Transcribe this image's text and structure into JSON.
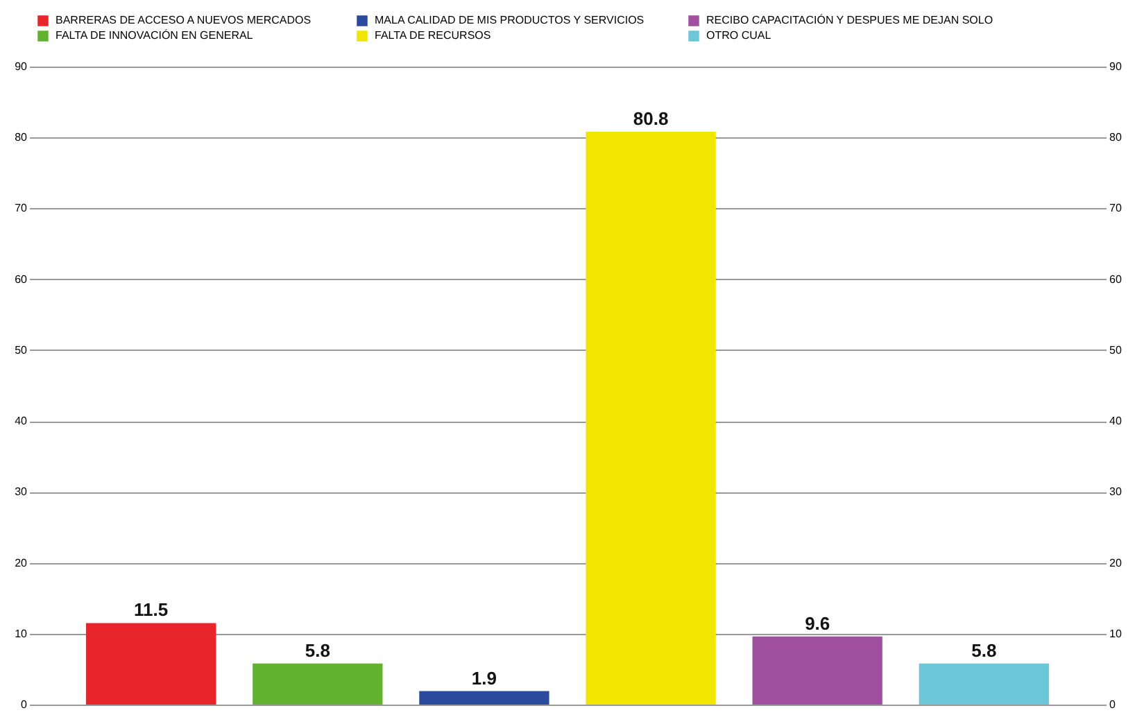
{
  "chart_data": {
    "type": "bar",
    "categories": [
      null,
      null,
      null,
      null,
      null,
      null
    ],
    "series": [
      {
        "name": "BARRERAS DE ACCESO A NUEVOS MERCADOS",
        "color": "#e8252a",
        "values": [
          11.5,
          null,
          null,
          null,
          null,
          null
        ]
      },
      {
        "name": "MALA CALIDAD DE MIS PRODUCTOS Y SERVICIOS",
        "color": "#2a4a9e",
        "values": [
          null,
          null,
          1.9,
          null,
          null,
          null
        ]
      },
      {
        "name": "RECIBO CAPACITACIÓN Y DESPUES ME DEJAN SOLO",
        "color": "#a0509e",
        "values": [
          null,
          null,
          null,
          null,
          9.6,
          null
        ]
      },
      {
        "name": "FALTA DE INNOVACIÓN EN GENERAL",
        "color": "#62b22f",
        "values": [
          null,
          5.8,
          null,
          null,
          null,
          null
        ]
      },
      {
        "name": "FALTA DE RECURSOS",
        "color": "#f2e600",
        "values": [
          null,
          null,
          null,
          80.8,
          null,
          null
        ]
      },
      {
        "name": "OTRO CUAL",
        "color": "#6cc8d8",
        "values": [
          null,
          null,
          null,
          null,
          null,
          5.8
        ]
      }
    ],
    "ylim": [
      0,
      90
    ],
    "yticks": [
      0,
      10,
      20,
      30,
      40,
      50,
      60,
      70,
      80,
      90
    ],
    "y2lim": [
      0,
      90
    ],
    "y2ticks": [
      0,
      10,
      20,
      30,
      40,
      50,
      60,
      70,
      80,
      90
    ],
    "grid": "y",
    "legend": "top",
    "data_labels": true
  }
}
